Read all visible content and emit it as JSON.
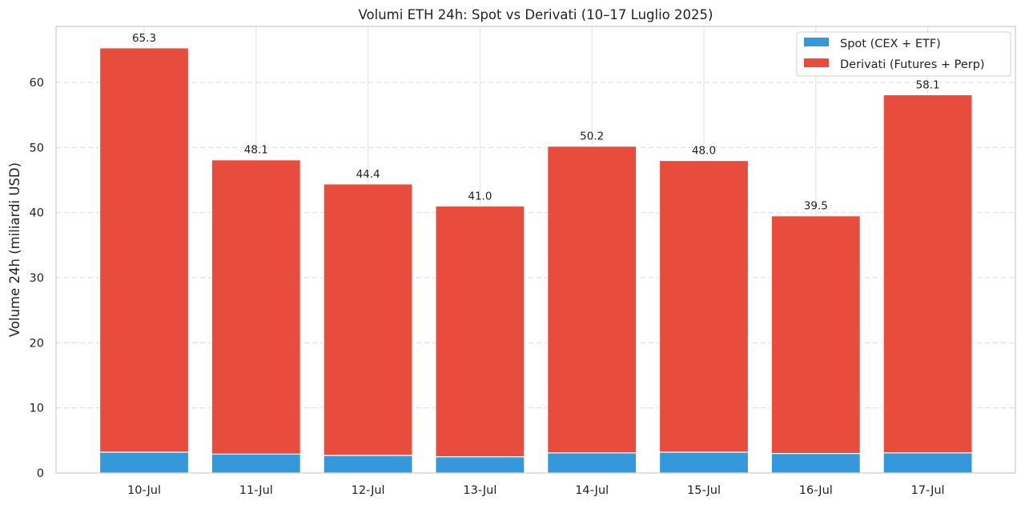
{
  "chart_data": {
    "type": "bar",
    "stacked": true,
    "title": "Volumi ETH 24h: Spot vs Derivati (10–17 Luglio 2025)",
    "xlabel": "",
    "ylabel": "Volume 24h (miliardi USD)",
    "categories": [
      "10-Jul",
      "11-Jul",
      "12-Jul",
      "13-Jul",
      "14-Jul",
      "15-Jul",
      "16-Jul",
      "17-Jul"
    ],
    "series": [
      {
        "name": "Spot (CEX + ETF)",
        "color": "#3498db",
        "values": [
          3.2,
          2.9,
          2.7,
          2.5,
          3.1,
          3.2,
          3.0,
          3.1
        ]
      },
      {
        "name": "Derivati (Futures + Perp)",
        "color": "#e74c3c",
        "values": [
          62.1,
          45.2,
          41.7,
          38.5,
          47.1,
          44.8,
          36.5,
          55.0
        ]
      }
    ],
    "totals": [
      "65.3",
      "48.1",
      "44.4",
      "41.0",
      "50.2",
      "48.0",
      "39.5",
      "58.1"
    ],
    "yticks": [
      0,
      10,
      20,
      30,
      40,
      50,
      60
    ],
    "ylim": [
      0,
      68.6
    ],
    "grid": true,
    "legend_position": "top-right"
  }
}
